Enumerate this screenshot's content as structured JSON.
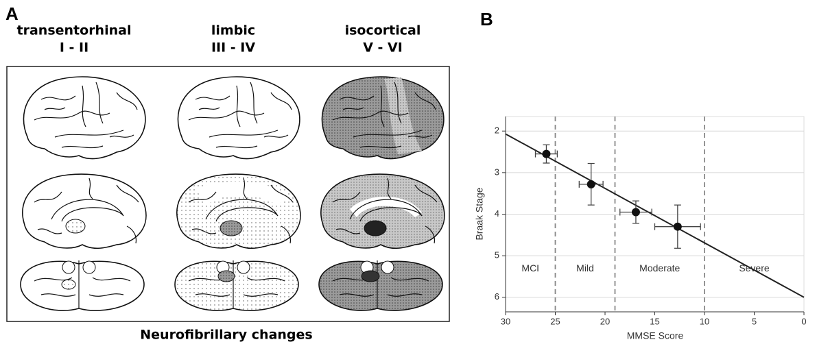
{
  "panel_a": {
    "panel_label": "A",
    "columns": [
      {
        "name": "transentorhinal",
        "stages": "I - II"
      },
      {
        "name": "limbic",
        "stages": "III - IV"
      },
      {
        "name": "isocortical",
        "stages": "V - VI"
      }
    ],
    "caption": "Neurofibrillary changes"
  },
  "chart_data": {
    "type": "scatter",
    "panel_label": "B",
    "xlabel": "MMSE Score",
    "ylabel": "Braak Stage",
    "xlim": [
      30,
      0
    ],
    "xticks": [
      30,
      25,
      20,
      15,
      10,
      5,
      0
    ],
    "ylim": [
      6.35,
      1.65
    ],
    "yticks": [
      2,
      3,
      4,
      5,
      6
    ],
    "grid": true,
    "color": "#111111",
    "series": [
      {
        "x": [
          25.9,
          21.4,
          16.9,
          12.7
        ],
        "y": [
          2.55,
          3.28,
          3.95,
          4.3
        ],
        "xerr": [
          1.1,
          1.2,
          1.6,
          2.3
        ],
        "yerr": [
          0.22,
          0.5,
          0.27,
          0.52
        ]
      }
    ],
    "trend_line": {
      "x": [
        30,
        0
      ],
      "y": [
        2.07,
        6.0
      ]
    },
    "region_dividers": [
      25,
      19,
      10
    ],
    "regions": [
      "MCI",
      "Mild",
      "Moderate",
      "Severe"
    ]
  }
}
